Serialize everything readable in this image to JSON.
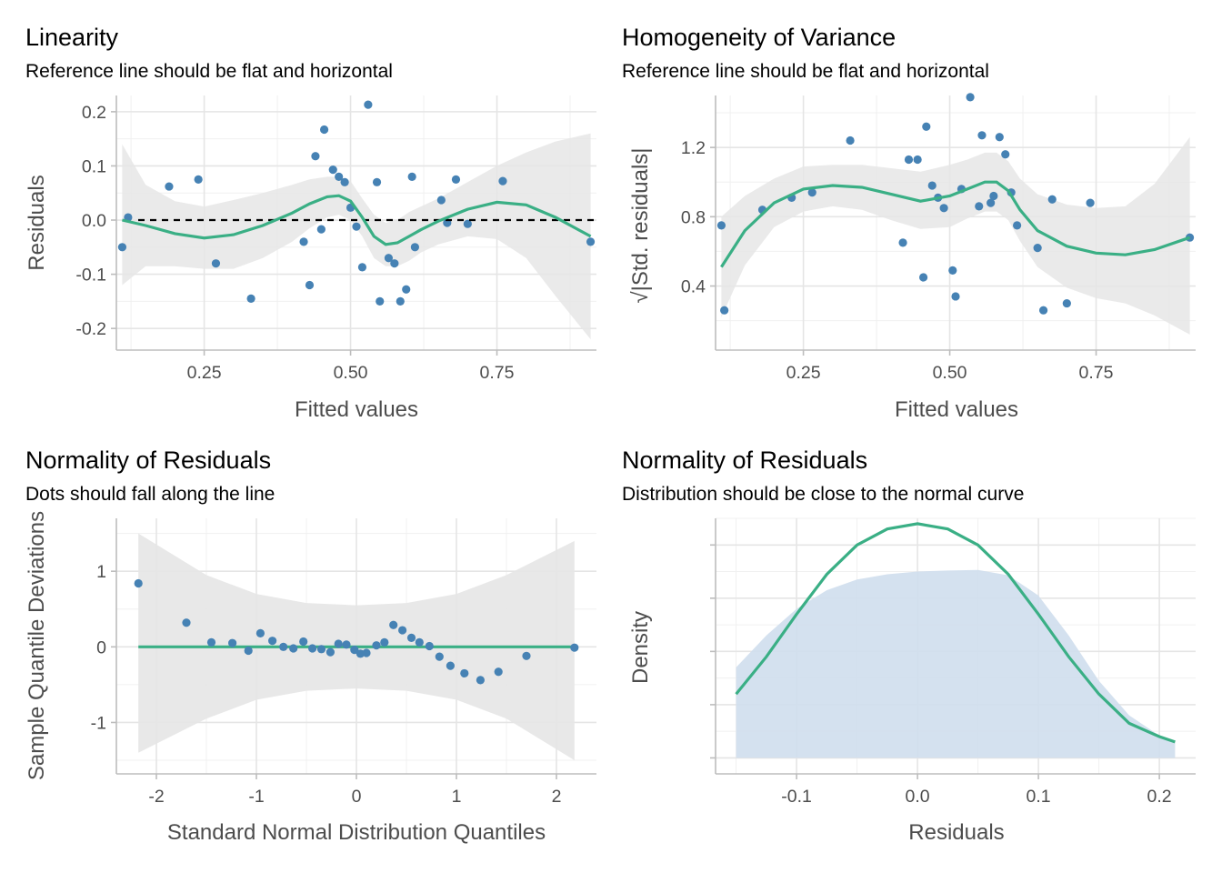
{
  "colors": {
    "points": "#4682b4",
    "line": "#3aaf85",
    "ribbon": "#e6e6e6",
    "density_fill": "#cfdeed",
    "reference": "#000000"
  },
  "chart_data": [
    {
      "id": "linearity",
      "type": "scatter",
      "title": "Linearity",
      "subtitle": "Reference line should be flat and horizontal",
      "xlabel": "Fitted values",
      "ylabel": "Residuals",
      "xlim": [
        0.1,
        0.92
      ],
      "ylim": [
        -0.24,
        0.23
      ],
      "xticks": [
        0.25,
        0.5,
        0.75
      ],
      "xtick_labels": [
        "0.25",
        "0.50",
        "0.75"
      ],
      "yticks": [
        -0.2,
        -0.1,
        0.0,
        0.1,
        0.2
      ],
      "ytick_labels": [
        "-0.2",
        "-0.1",
        "0.0",
        "0.1",
        "0.2"
      ],
      "reference_line": {
        "y": 0,
        "style": "dashed"
      },
      "points": [
        [
          0.11,
          -0.05
        ],
        [
          0.12,
          0.005
        ],
        [
          0.19,
          0.062
        ],
        [
          0.24,
          0.075
        ],
        [
          0.27,
          -0.08
        ],
        [
          0.33,
          -0.145
        ],
        [
          0.42,
          -0.04
        ],
        [
          0.43,
          -0.12
        ],
        [
          0.44,
          0.118
        ],
        [
          0.45,
          -0.017
        ],
        [
          0.455,
          0.167
        ],
        [
          0.47,
          0.093
        ],
        [
          0.48,
          0.08
        ],
        [
          0.49,
          0.07
        ],
        [
          0.5,
          0.023
        ],
        [
          0.51,
          -0.012
        ],
        [
          0.52,
          -0.087
        ],
        [
          0.53,
          0.213
        ],
        [
          0.545,
          0.07
        ],
        [
          0.55,
          -0.15
        ],
        [
          0.565,
          -0.07
        ],
        [
          0.575,
          -0.08
        ],
        [
          0.585,
          -0.15
        ],
        [
          0.595,
          -0.128
        ],
        [
          0.605,
          0.08
        ],
        [
          0.61,
          -0.05
        ],
        [
          0.655,
          0.037
        ],
        [
          0.665,
          -0.005
        ],
        [
          0.68,
          0.075
        ],
        [
          0.7,
          -0.007
        ],
        [
          0.76,
          0.072
        ],
        [
          0.91,
          -0.04
        ]
      ],
      "smooth": {
        "x": [
          0.11,
          0.15,
          0.2,
          0.25,
          0.3,
          0.35,
          0.4,
          0.43,
          0.46,
          0.48,
          0.5,
          0.52,
          0.54,
          0.56,
          0.58,
          0.6,
          0.62,
          0.65,
          0.7,
          0.75,
          0.8,
          0.85,
          0.91
        ],
        "y": [
          0.0,
          -0.01,
          -0.025,
          -0.033,
          -0.027,
          -0.01,
          0.013,
          0.03,
          0.043,
          0.045,
          0.035,
          0.005,
          -0.03,
          -0.045,
          -0.042,
          -0.03,
          -0.018,
          -0.002,
          0.02,
          0.033,
          0.028,
          0.005,
          -0.03
        ],
        "lower": [
          -0.12,
          -0.085,
          -0.085,
          -0.09,
          -0.09,
          -0.07,
          -0.04,
          -0.015,
          0.005,
          0.01,
          0.0,
          -0.03,
          -0.07,
          -0.085,
          -0.085,
          -0.075,
          -0.06,
          -0.045,
          -0.03,
          -0.035,
          -0.07,
          -0.14,
          -0.22
        ],
        "upper": [
          0.14,
          0.065,
          0.035,
          0.025,
          0.037,
          0.05,
          0.065,
          0.075,
          0.08,
          0.08,
          0.072,
          0.04,
          0.01,
          -0.005,
          0.0,
          0.015,
          0.025,
          0.04,
          0.07,
          0.1,
          0.125,
          0.145,
          0.16
        ]
      }
    },
    {
      "id": "homogeneity",
      "type": "scatter",
      "title": "Homogeneity of Variance",
      "subtitle": "Reference line should be flat and horizontal",
      "xlabel": "Fitted values",
      "ylabel": "√|Std. residuals|",
      "xlim": [
        0.1,
        0.92
      ],
      "ylim": [
        0.03,
        1.5
      ],
      "xticks": [
        0.25,
        0.5,
        0.75
      ],
      "xtick_labels": [
        "0.25",
        "0.50",
        "0.75"
      ],
      "yticks": [
        0.4,
        0.8,
        1.2
      ],
      "ytick_labels": [
        "0.4",
        "0.8",
        "1.2"
      ],
      "points": [
        [
          0.11,
          0.75
        ],
        [
          0.115,
          0.26
        ],
        [
          0.18,
          0.84
        ],
        [
          0.23,
          0.91
        ],
        [
          0.265,
          0.94
        ],
        [
          0.33,
          1.24
        ],
        [
          0.42,
          0.65
        ],
        [
          0.43,
          1.13
        ],
        [
          0.445,
          1.13
        ],
        [
          0.455,
          0.45
        ],
        [
          0.46,
          1.32
        ],
        [
          0.47,
          0.98
        ],
        [
          0.48,
          0.91
        ],
        [
          0.49,
          0.85
        ],
        [
          0.505,
          0.49
        ],
        [
          0.51,
          0.34
        ],
        [
          0.52,
          0.96
        ],
        [
          0.535,
          1.49
        ],
        [
          0.55,
          0.86
        ],
        [
          0.555,
          1.27
        ],
        [
          0.57,
          0.88
        ],
        [
          0.575,
          0.92
        ],
        [
          0.585,
          1.26
        ],
        [
          0.595,
          1.16
        ],
        [
          0.605,
          0.94
        ],
        [
          0.615,
          0.75
        ],
        [
          0.65,
          0.62
        ],
        [
          0.66,
          0.26
        ],
        [
          0.675,
          0.9
        ],
        [
          0.7,
          0.3
        ],
        [
          0.74,
          0.88
        ],
        [
          0.91,
          0.68
        ]
      ],
      "smooth": {
        "x": [
          0.11,
          0.15,
          0.2,
          0.25,
          0.3,
          0.35,
          0.4,
          0.45,
          0.5,
          0.53,
          0.56,
          0.58,
          0.6,
          0.62,
          0.65,
          0.7,
          0.75,
          0.8,
          0.85,
          0.91
        ],
        "y": [
          0.51,
          0.72,
          0.88,
          0.96,
          0.98,
          0.97,
          0.93,
          0.89,
          0.92,
          0.96,
          1.0,
          1.0,
          0.95,
          0.84,
          0.72,
          0.63,
          0.59,
          0.58,
          0.61,
          0.68
        ],
        "lower": [
          0.22,
          0.52,
          0.74,
          0.83,
          0.86,
          0.84,
          0.78,
          0.73,
          0.74,
          0.79,
          0.83,
          0.83,
          0.78,
          0.66,
          0.51,
          0.39,
          0.33,
          0.3,
          0.23,
          0.12
        ],
        "upper": [
          0.8,
          0.92,
          1.02,
          1.09,
          1.1,
          1.1,
          1.08,
          1.06,
          1.1,
          1.13,
          1.17,
          1.17,
          1.12,
          1.02,
          0.93,
          0.87,
          0.85,
          0.86,
          0.99,
          1.26
        ]
      }
    },
    {
      "id": "qq",
      "type": "scatter",
      "title": "Normality of Residuals",
      "subtitle": "Dots should fall along the line",
      "xlabel": "Standard Normal Distribution Quantiles",
      "ylabel": "Sample Quantile Deviations",
      "xlim": [
        -2.4,
        2.4
      ],
      "ylim": [
        -1.68,
        1.7
      ],
      "xticks": [
        -2,
        -1,
        0,
        1,
        2
      ],
      "xtick_labels": [
        "-2",
        "-1",
        "0",
        "1",
        "2"
      ],
      "yticks": [
        -1,
        0,
        1
      ],
      "ytick_labels": [
        "-1",
        "0",
        "1"
      ],
      "reference_line": {
        "y": 0,
        "style": "solid"
      },
      "points": [
        [
          -2.18,
          0.84
        ],
        [
          -1.7,
          0.32
        ],
        [
          -1.45,
          0.06
        ],
        [
          -1.24,
          0.05
        ],
        [
          -1.08,
          -0.05
        ],
        [
          -0.96,
          0.18
        ],
        [
          -0.84,
          0.08
        ],
        [
          -0.73,
          0.0
        ],
        [
          -0.63,
          -0.02
        ],
        [
          -0.53,
          0.07
        ],
        [
          -0.44,
          -0.02
        ],
        [
          -0.35,
          -0.03
        ],
        [
          -0.26,
          -0.07
        ],
        [
          -0.18,
          0.04
        ],
        [
          -0.1,
          0.03
        ],
        [
          -0.02,
          -0.04
        ],
        [
          0.04,
          -0.09
        ],
        [
          0.1,
          -0.08
        ],
        [
          0.2,
          0.02
        ],
        [
          0.28,
          0.06
        ],
        [
          0.37,
          0.29
        ],
        [
          0.46,
          0.22
        ],
        [
          0.55,
          0.12
        ],
        [
          0.63,
          0.06
        ],
        [
          0.73,
          0.01
        ],
        [
          0.83,
          -0.13
        ],
        [
          0.94,
          -0.25
        ],
        [
          1.08,
          -0.35
        ],
        [
          1.24,
          -0.44
        ],
        [
          1.42,
          -0.33
        ],
        [
          1.7,
          -0.12
        ],
        [
          2.18,
          -0.01
        ]
      ],
      "band_x": [
        -2.18,
        -1.5,
        -1.0,
        -0.5,
        0.0,
        0.5,
        1.0,
        1.5,
        2.18
      ],
      "band_upper": [
        1.5,
        0.95,
        0.7,
        0.58,
        0.55,
        0.58,
        0.7,
        0.95,
        1.4
      ],
      "band_lower": [
        -1.4,
        -0.95,
        -0.7,
        -0.58,
        -0.55,
        -0.58,
        -0.7,
        -0.95,
        -1.5
      ]
    },
    {
      "id": "density",
      "type": "area",
      "title": "Normality of Residuals",
      "subtitle": "Distribution should be close to the normal curve",
      "xlabel": "Residuals",
      "ylabel": "Density",
      "xlim": [
        -0.167,
        0.23
      ],
      "ylim": [
        -0.3,
        4.5
      ],
      "xticks": [
        -0.1,
        0.0,
        0.1,
        0.2
      ],
      "xtick_labels": [
        "-0.1",
        "0.0",
        "0.1",
        "0.2"
      ],
      "yticks": [
        0,
        1,
        2,
        3,
        4
      ],
      "ytick_labels": [
        "",
        "",
        "",
        "",
        ""
      ],
      "density": {
        "x": [
          -0.15,
          -0.125,
          -0.1,
          -0.075,
          -0.05,
          -0.025,
          0.0,
          0.025,
          0.05,
          0.075,
          0.1,
          0.125,
          0.15,
          0.175,
          0.2,
          0.213
        ],
        "y": [
          1.7,
          2.3,
          2.8,
          3.15,
          3.35,
          3.45,
          3.5,
          3.52,
          3.53,
          3.43,
          3.05,
          2.3,
          1.45,
          0.8,
          0.42,
          0.3
        ]
      },
      "normal_curve": {
        "x": [
          -0.15,
          -0.125,
          -0.1,
          -0.075,
          -0.05,
          -0.025,
          0.0,
          0.025,
          0.05,
          0.075,
          0.1,
          0.125,
          0.15,
          0.175,
          0.2,
          0.213
        ],
        "y": [
          1.2,
          1.9,
          2.7,
          3.45,
          4.0,
          4.3,
          4.4,
          4.3,
          4.0,
          3.45,
          2.7,
          1.9,
          1.2,
          0.65,
          0.4,
          0.3
        ]
      }
    }
  ]
}
